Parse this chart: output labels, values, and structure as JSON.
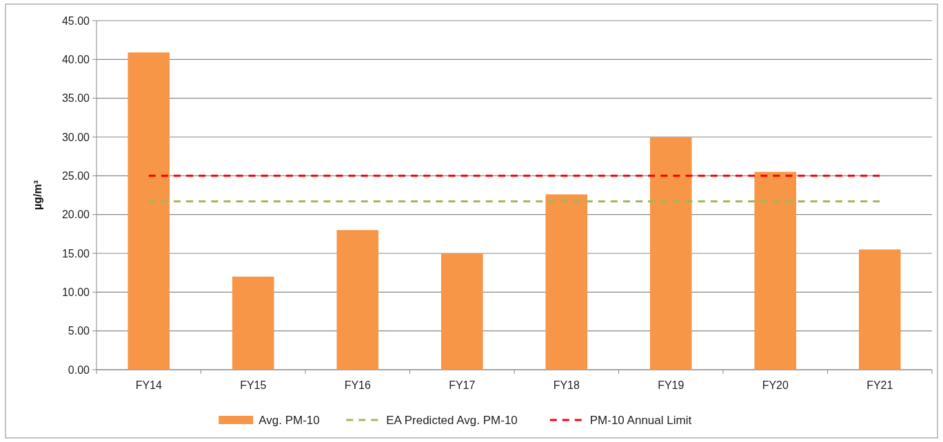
{
  "chart_data": {
    "type": "bar",
    "ylabel": "µg/m³",
    "categories": [
      "FY14",
      "FY15",
      "FY16",
      "FY17",
      "FY18",
      "FY19",
      "FY20",
      "FY21"
    ],
    "series": [
      {
        "name": "Avg. PM-10",
        "color": "#f79646",
        "values": [
          40.9,
          12.0,
          18.0,
          15.0,
          22.6,
          30.0,
          25.5,
          15.5
        ]
      },
      {
        "name": "EA Predicted Avg. PM-10",
        "type": "line",
        "line_style": "dashed",
        "marker": "none",
        "color": "#9bbb59",
        "values": [
          21.7,
          21.7,
          21.7,
          21.7,
          21.7,
          21.7,
          21.7,
          21.7
        ]
      },
      {
        "name": "PM-10 Annual Limit",
        "type": "line",
        "line_style": "dashed",
        "marker": "none",
        "color": "#ff0000",
        "values": [
          25,
          25,
          25,
          25,
          25,
          25,
          25,
          25
        ]
      }
    ],
    "ylim": [
      0,
      45
    ],
    "yticks": [
      {
        "value": 0,
        "label": "0.00"
      },
      {
        "value": 5,
        "label": "5.00"
      },
      {
        "value": 10,
        "label": "10.00"
      },
      {
        "value": 15,
        "label": "15.00"
      },
      {
        "value": 20,
        "label": "20.00"
      },
      {
        "value": 25,
        "label": "25.00"
      },
      {
        "value": 30,
        "label": "30.00"
      },
      {
        "value": 35,
        "label": "35.00"
      },
      {
        "value": 40,
        "label": "40.00"
      },
      {
        "value": 45,
        "label": "45.00"
      }
    ],
    "grid": "y",
    "legend": "bottom"
  }
}
